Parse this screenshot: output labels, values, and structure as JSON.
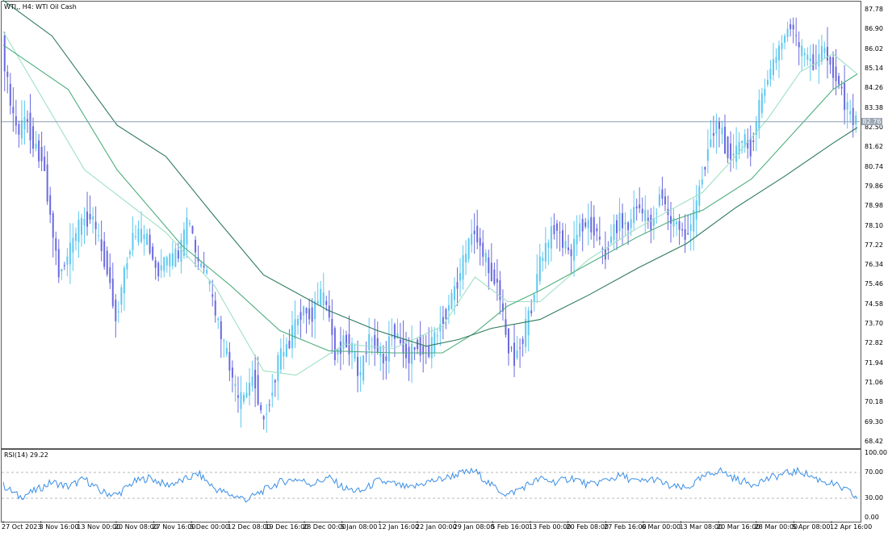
{
  "main_panel": {
    "symbol": "WTI",
    "timeframe": "H4",
    "description": "WTI Oil Cash",
    "label": "WTI,, H4:  WTI Oil Cash",
    "price_axis_labels": [
      "87.78",
      "86.90",
      "86.02",
      "85.14",
      "84.26",
      "83.38",
      "82.50",
      "81.62",
      "80.74",
      "79.86",
      "78.98",
      "78.10",
      "77.22",
      "76.34",
      "75.46",
      "74.58",
      "73.70",
      "72.82",
      "71.94",
      "71.06",
      "70.18",
      "69.30",
      "68.42"
    ],
    "current_price_label": "82.76",
    "colors": {
      "bull": "#5ec8f0",
      "bear": "#6a6ae0",
      "ma_fast": "#9fe0c4",
      "ma_mid": "#4fae7e",
      "ma_slow": "#2e7a5a",
      "price_line": "#8ca0b4"
    }
  },
  "rsi_panel": {
    "label": "RSI(14) 29.22",
    "axis_labels": [
      "100.00",
      "70.00",
      "30.00",
      "0.00"
    ],
    "levels": [
      70,
      30
    ],
    "current_value": 29.22,
    "color": "#3a8ee6"
  },
  "time_axis": [
    "27 Oct 2023",
    "3 Nov 16:00",
    "13 Nov 00:00",
    "20 Nov 08:00",
    "27 Nov 16:00",
    "5 Dec 00:00",
    "12 Dec 08:00",
    "19 Dec 16:00",
    "28 Dec 00:00",
    "5 Jan 08:00",
    "12 Jan 16:00",
    "22 Jan 00:00",
    "29 Jan 08:00",
    "5 Feb 16:00",
    "13 Feb 00:00",
    "20 Feb 08:00",
    "27 Feb 16:00",
    "6 Mar 00:00",
    "13 Mar 08:00",
    "20 Mar 16:00",
    "28 Mar 00:00",
    "5 Apr 08:00",
    "12 Apr 16:00"
  ],
  "chart_data": {
    "type": "candlestick",
    "instrument": "WTI Oil Cash",
    "timeframe": "H4",
    "y_range": [
      68.0,
      88.2
    ],
    "current_price": 82.76,
    "close_path": [
      [
        0,
        86.3
      ],
      [
        1,
        83.6
      ],
      [
        2,
        82.2
      ],
      [
        3,
        83.0
      ],
      [
        4,
        81.6
      ],
      [
        5,
        81.2
      ],
      [
        6,
        78.4
      ],
      [
        7,
        76.0
      ],
      [
        8,
        76.6
      ],
      [
        9,
        77.7
      ],
      [
        10,
        78.3
      ],
      [
        11,
        78.6
      ],
      [
        12,
        77.3
      ],
      [
        13,
        76.2
      ],
      [
        14,
        73.9
      ],
      [
        15,
        75.9
      ],
      [
        16,
        77.6
      ],
      [
        17,
        77.7
      ],
      [
        18,
        77.4
      ],
      [
        19,
        76.0
      ],
      [
        20,
        76.5
      ],
      [
        21,
        76.6
      ],
      [
        22,
        77.0
      ],
      [
        23,
        78.5
      ],
      [
        24,
        76.4
      ],
      [
        25,
        76.2
      ],
      [
        26,
        74.5
      ],
      [
        27,
        73.1
      ],
      [
        28,
        71.8
      ],
      [
        29,
        70.2
      ],
      [
        30,
        70.5
      ],
      [
        31,
        71.5
      ],
      [
        32,
        69.2
      ],
      [
        33,
        70.4
      ],
      [
        34,
        72.1
      ],
      [
        35,
        72.6
      ],
      [
        36,
        73.6
      ],
      [
        37,
        74.4
      ],
      [
        38,
        74.0
      ],
      [
        39,
        75.0
      ],
      [
        40,
        74.5
      ],
      [
        41,
        72.3
      ],
      [
        42,
        73.0
      ],
      [
        43,
        72.6
      ],
      [
        44,
        71.2
      ],
      [
        45,
        73.1
      ],
      [
        46,
        72.8
      ],
      [
        47,
        71.9
      ],
      [
        48,
        73.5
      ],
      [
        49,
        72.8
      ],
      [
        50,
        72.2
      ],
      [
        51,
        72.9
      ],
      [
        52,
        72.3
      ],
      [
        53,
        72.8
      ],
      [
        54,
        73.8
      ],
      [
        55,
        74.6
      ],
      [
        56,
        75.6
      ],
      [
        57,
        76.8
      ],
      [
        58,
        78.0
      ],
      [
        59,
        77.0
      ],
      [
        60,
        76.0
      ],
      [
        61,
        75.5
      ],
      [
        62,
        73.0
      ],
      [
        63,
        72.2
      ],
      [
        64,
        73.0
      ],
      [
        65,
        74.3
      ],
      [
        66,
        76.3
      ],
      [
        67,
        77.2
      ],
      [
        68,
        78.2
      ],
      [
        69,
        77.3
      ],
      [
        70,
        76.8
      ],
      [
        71,
        78.1
      ],
      [
        72,
        78.2
      ],
      [
        73,
        78.0
      ],
      [
        74,
        76.6
      ],
      [
        75,
        77.8
      ],
      [
        76,
        78.4
      ],
      [
        77,
        78.0
      ],
      [
        78,
        79.1
      ],
      [
        79,
        78.5
      ],
      [
        80,
        78.1
      ],
      [
        81,
        79.8
      ],
      [
        82,
        78.3
      ],
      [
        83,
        78.2
      ],
      [
        84,
        77.6
      ],
      [
        85,
        78.4
      ],
      [
        86,
        80.2
      ],
      [
        87,
        81.9
      ],
      [
        88,
        82.8
      ],
      [
        89,
        81.6
      ],
      [
        90,
        81.2
      ],
      [
        91,
        82.0
      ],
      [
        92,
        81.5
      ],
      [
        93,
        83.2
      ],
      [
        94,
        84.6
      ],
      [
        95,
        85.5
      ],
      [
        96,
        86.4
      ],
      [
        97,
        87.2
      ],
      [
        98,
        86.0
      ],
      [
        99,
        85.6
      ],
      [
        100,
        85.3
      ],
      [
        101,
        86.1
      ],
      [
        102,
        85.2
      ],
      [
        103,
        84.4
      ],
      [
        104,
        83.2
      ],
      [
        105,
        82.76
      ]
    ],
    "moving_averages": [
      {
        "name": "fast",
        "path": [
          [
            0,
            86.8
          ],
          [
            10,
            80.6
          ],
          [
            20,
            77.8
          ],
          [
            26,
            75.4
          ],
          [
            32,
            71.6
          ],
          [
            36,
            71.4
          ],
          [
            42,
            72.8
          ],
          [
            48,
            72.6
          ],
          [
            54,
            73.6
          ],
          [
            58,
            75.8
          ],
          [
            62,
            74.7
          ],
          [
            66,
            74.7
          ],
          [
            72,
            76.6
          ],
          [
            78,
            78.0
          ],
          [
            82,
            78.8
          ],
          [
            86,
            79.6
          ],
          [
            90,
            81.2
          ],
          [
            94,
            82.9
          ],
          [
            98,
            85.0
          ],
          [
            102,
            85.8
          ],
          [
            105,
            84.9
          ]
        ]
      },
      {
        "name": "mid",
        "path": [
          [
            0,
            86.2
          ],
          [
            8,
            84.2
          ],
          [
            14,
            80.6
          ],
          [
            22,
            77.2
          ],
          [
            28,
            75.4
          ],
          [
            34,
            73.4
          ],
          [
            40,
            72.5
          ],
          [
            48,
            72.4
          ],
          [
            54,
            72.4
          ],
          [
            58,
            73.3
          ],
          [
            62,
            74.5
          ],
          [
            66,
            75.2
          ],
          [
            72,
            76.4
          ],
          [
            78,
            77.6
          ],
          [
            82,
            78.3
          ],
          [
            86,
            78.8
          ],
          [
            92,
            80.2
          ],
          [
            98,
            82.6
          ],
          [
            102,
            84.2
          ],
          [
            105,
            84.9
          ]
        ]
      },
      {
        "name": "slow",
        "path": [
          [
            0,
            88.2
          ],
          [
            6,
            86.6
          ],
          [
            14,
            82.6
          ],
          [
            20,
            81.2
          ],
          [
            26,
            78.5
          ],
          [
            32,
            75.9
          ],
          [
            40,
            74.3
          ],
          [
            46,
            73.4
          ],
          [
            52,
            72.7
          ],
          [
            56,
            73.0
          ],
          [
            60,
            73.5
          ],
          [
            66,
            73.9
          ],
          [
            72,
            75.0
          ],
          [
            78,
            76.2
          ],
          [
            84,
            77.3
          ],
          [
            90,
            78.9
          ],
          [
            96,
            80.3
          ],
          [
            102,
            81.8
          ],
          [
            105,
            82.5
          ]
        ]
      }
    ],
    "rsi": {
      "period": 14,
      "last": 29.22,
      "levels": [
        70,
        30
      ],
      "y_range": [
        0,
        100
      ],
      "points": [
        [
          0,
          50
        ],
        [
          2,
          32
        ],
        [
          4,
          42
        ],
        [
          6,
          55
        ],
        [
          8,
          48
        ],
        [
          10,
          60
        ],
        [
          12,
          40
        ],
        [
          14,
          35
        ],
        [
          16,
          55
        ],
        [
          18,
          62
        ],
        [
          20,
          50
        ],
        [
          22,
          57
        ],
        [
          24,
          68
        ],
        [
          26,
          45
        ],
        [
          28,
          35
        ],
        [
          30,
          28
        ],
        [
          32,
          42
        ],
        [
          34,
          55
        ],
        [
          36,
          60
        ],
        [
          38,
          52
        ],
        [
          40,
          62
        ],
        [
          42,
          45
        ],
        [
          44,
          40
        ],
        [
          46,
          57
        ],
        [
          48,
          52
        ],
        [
          50,
          45
        ],
        [
          52,
          55
        ],
        [
          54,
          60
        ],
        [
          56,
          68
        ],
        [
          58,
          72
        ],
        [
          60,
          50
        ],
        [
          62,
          35
        ],
        [
          64,
          48
        ],
        [
          66,
          60
        ],
        [
          68,
          55
        ],
        [
          70,
          62
        ],
        [
          72,
          50
        ],
        [
          74,
          58
        ],
        [
          76,
          65
        ],
        [
          78,
          55
        ],
        [
          80,
          60
        ],
        [
          82,
          48
        ],
        [
          84,
          45
        ],
        [
          86,
          62
        ],
        [
          88,
          74
        ],
        [
          90,
          60
        ],
        [
          92,
          52
        ],
        [
          94,
          60
        ],
        [
          96,
          68
        ],
        [
          98,
          72
        ],
        [
          100,
          60
        ],
        [
          102,
          52
        ],
        [
          104,
          40
        ],
        [
          105,
          29.22
        ]
      ]
    }
  }
}
